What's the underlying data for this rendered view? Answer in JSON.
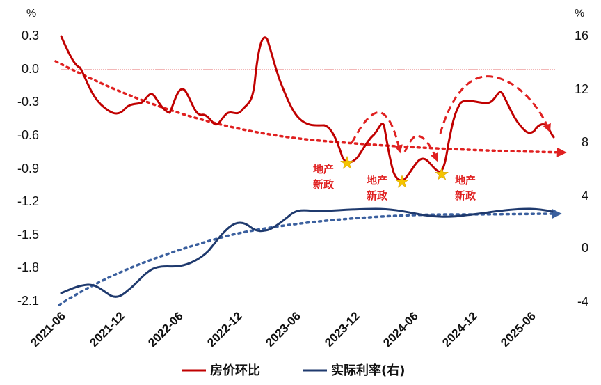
{
  "chart_data": {
    "type": "line",
    "left_axis": {
      "unit": "%",
      "ticks": [
        "0.3",
        "0.0",
        "-0.3",
        "-0.6",
        "-0.9",
        "-1.2",
        "-1.5",
        "-1.8",
        "-2.1"
      ],
      "ylim": [
        -2.1,
        0.3
      ]
    },
    "right_axis": {
      "unit": "%",
      "ticks": [
        "16",
        "12",
        "8",
        "4",
        "0",
        "-4"
      ],
      "ylim": [
        -4,
        16
      ]
    },
    "x_ticks": [
      "2021-06",
      "2021-12",
      "2022-06",
      "2022-12",
      "2023-06",
      "2023-12",
      "2024-06",
      "2024-12",
      "2025-06"
    ],
    "x_start": "2021-06",
    "x_end": "2025-09",
    "series": [
      {
        "name": "房价环比",
        "axis": "left",
        "color": "#c00000",
        "values": [
          0.3,
          0.05,
          -0.2,
          -0.38,
          -0.3,
          -0.2,
          -0.38,
          -0.2,
          -0.38,
          -0.48,
          -0.4,
          -0.4,
          0.3,
          -0.1,
          -0.45,
          -0.5,
          -0.55,
          -0.83,
          -0.7,
          -0.5,
          -0.98,
          -0.8,
          -0.92,
          -0.3,
          -0.3,
          -0.2,
          -0.45,
          -0.6
        ]
      },
      {
        "name": "实际利率(右)",
        "axis": "right",
        "color": "#1f3a6e",
        "values": [
          -3.2,
          -2.7,
          -3.6,
          -2.2,
          -1.5,
          -1.2,
          0.0,
          1.8,
          1.0,
          2.8,
          2.7,
          2.8,
          2.9,
          2.7,
          2.4,
          2.5,
          2.6,
          2.8,
          2.7
        ]
      }
    ],
    "trend_lines": [
      {
        "name": "房价环比趋势",
        "color": "#e02020"
      },
      {
        "name": "实际利率趋势",
        "color": "#3a5f9e"
      }
    ],
    "annotations": [
      {
        "line1": "地产",
        "line2": "新政",
        "x_label": "2023-10"
      },
      {
        "line1": "地产",
        "line2": "新政",
        "x_label": "2024-05"
      },
      {
        "line1": "地产",
        "line2": "新政",
        "x_label": "2024-09"
      }
    ],
    "legend": {
      "position": "bottom",
      "items": [
        {
          "label": "房价环比",
          "color": "#c00000"
        },
        {
          "label": "实际利率(右)",
          "color": "#1f3a6e"
        }
      ]
    }
  }
}
